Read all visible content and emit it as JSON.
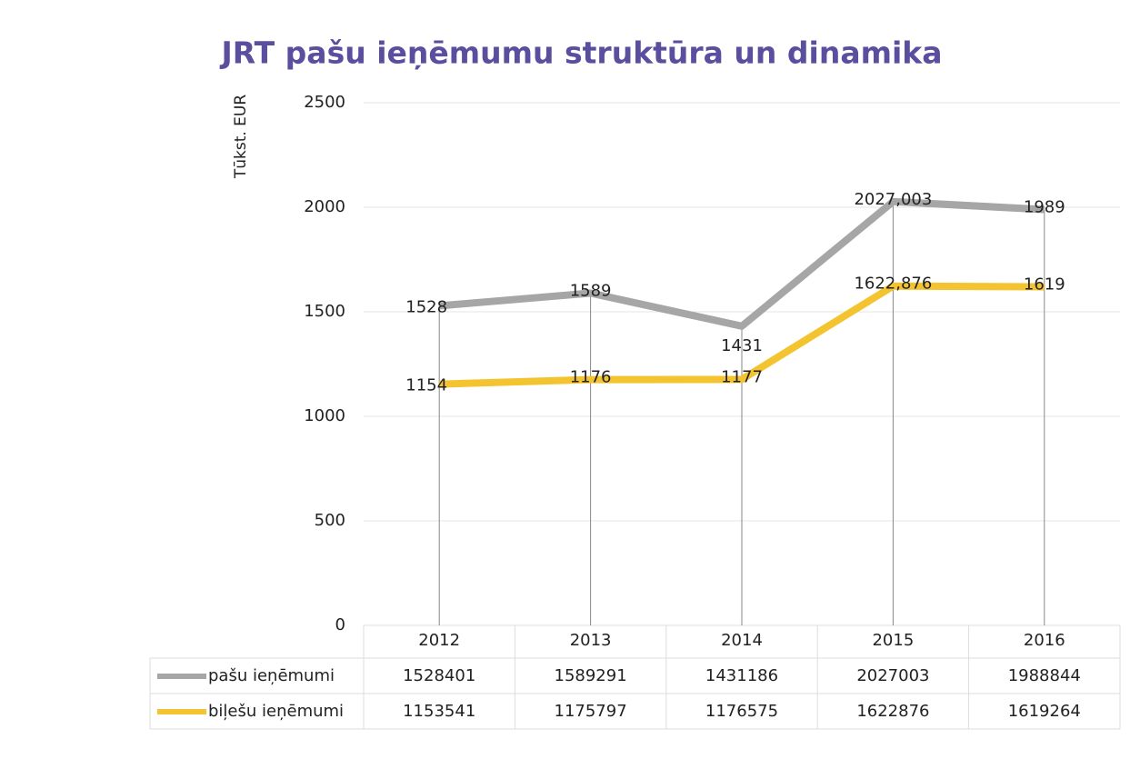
{
  "chart_data": {
    "type": "line",
    "title": "JRT pašu ieņēmumu struktūra un dinamika",
    "y_label": "Tūkst. EUR",
    "categories": [
      "2012",
      "2013",
      "2014",
      "2015",
      "2016"
    ],
    "series": [
      {
        "name": "pašu ieņēmumi",
        "color": "#a6a6a6",
        "values": [
          1528.401,
          1589.291,
          1431.186,
          2027.003,
          1988.844
        ],
        "value_labels": [
          "1528",
          "1589",
          "1431",
          "2027,003",
          "1989"
        ]
      },
      {
        "name": "biļešu ieņēmumi",
        "color": "#f4c430",
        "values": [
          1153.541,
          1175.797,
          1176.575,
          1622.876,
          1619.264
        ],
        "value_labels": [
          "1154",
          "1176",
          "1177",
          "1622,876",
          "1619"
        ]
      }
    ],
    "data_table": [
      [
        1528401,
        1589291,
        1431186,
        2027003,
        1988844
      ],
      [
        1153541,
        1175797,
        1176575,
        1622876,
        1619264
      ]
    ],
    "ylim": [
      0,
      2500
    ],
    "yticks": [
      0,
      500,
      1000,
      1500,
      2000,
      2500
    ],
    "grid": true
  }
}
